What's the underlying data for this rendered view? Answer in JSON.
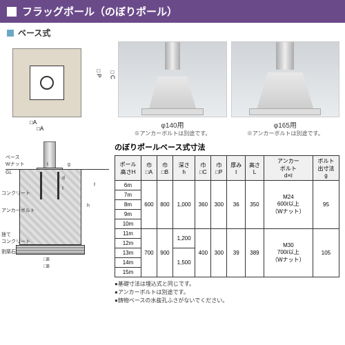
{
  "header": {
    "title": "フラッグポール（のぼりポール）"
  },
  "subheader": {
    "title": "ベース式"
  },
  "photos": [
    {
      "caption": "φ140用",
      "note": "※アンカーボルトは別途です。"
    },
    {
      "caption": "φ165用",
      "note": "※アンカーボルトは別途です。"
    }
  ],
  "dia1_dims": {
    "boxA": "□A",
    "boxA2": "□A",
    "boxC": "□C",
    "boxP": "□P"
  },
  "dia2_labels": {
    "base": "ベース",
    "wnut": "Wナット",
    "gl": "GL",
    "concrete": "コンクリート",
    "anchor": "アンカーボルト",
    "sute": "捨て\nコンクリート",
    "wari": "割栗石",
    "dimB": "□B",
    "dimB2": "□B",
    "dimh": "h",
    "dimf": "f",
    "dimd": "d",
    "dimg": "g",
    "diml": "ℓ",
    "dimt": "t"
  },
  "table": {
    "title": "のぼりポールベース式寸法",
    "headers": [
      "ポール\n高さH",
      "巾\n□A",
      "巾\n□B",
      "深さ\nh",
      "巾\n□C",
      "巾\n□P",
      "厚み\nt",
      "高さ\nL",
      "アンカー\nボルト\nd×ℓ",
      "ボルト\n出寸法\ng"
    ],
    "group1": {
      "heights": [
        "6m",
        "7m",
        "8m",
        "9m",
        "10m"
      ],
      "A": "600",
      "B": "800",
      "h": "1,000",
      "C": "360",
      "P": "300",
      "t": "36",
      "L": "350",
      "anchor": "M24\n600ℓ以上\n（Wナット）",
      "g": "95"
    },
    "group2": {
      "heights": [
        "11m",
        "12m",
        "13m",
        "14m",
        "15m"
      ],
      "A": "700",
      "B": "900",
      "h1": "1,200",
      "h2": "1,500",
      "C": "400",
      "P": "300",
      "t": "39",
      "L": "389",
      "anchor": "M30\n700ℓ以上\n（Wナット）",
      "g": "105"
    }
  },
  "bullets": [
    "●基礎寸法は埋込式と同じです。",
    "●アンカーボルトは別途です。",
    "●鋳物ベースの水抜孔ふさがないでください。"
  ]
}
